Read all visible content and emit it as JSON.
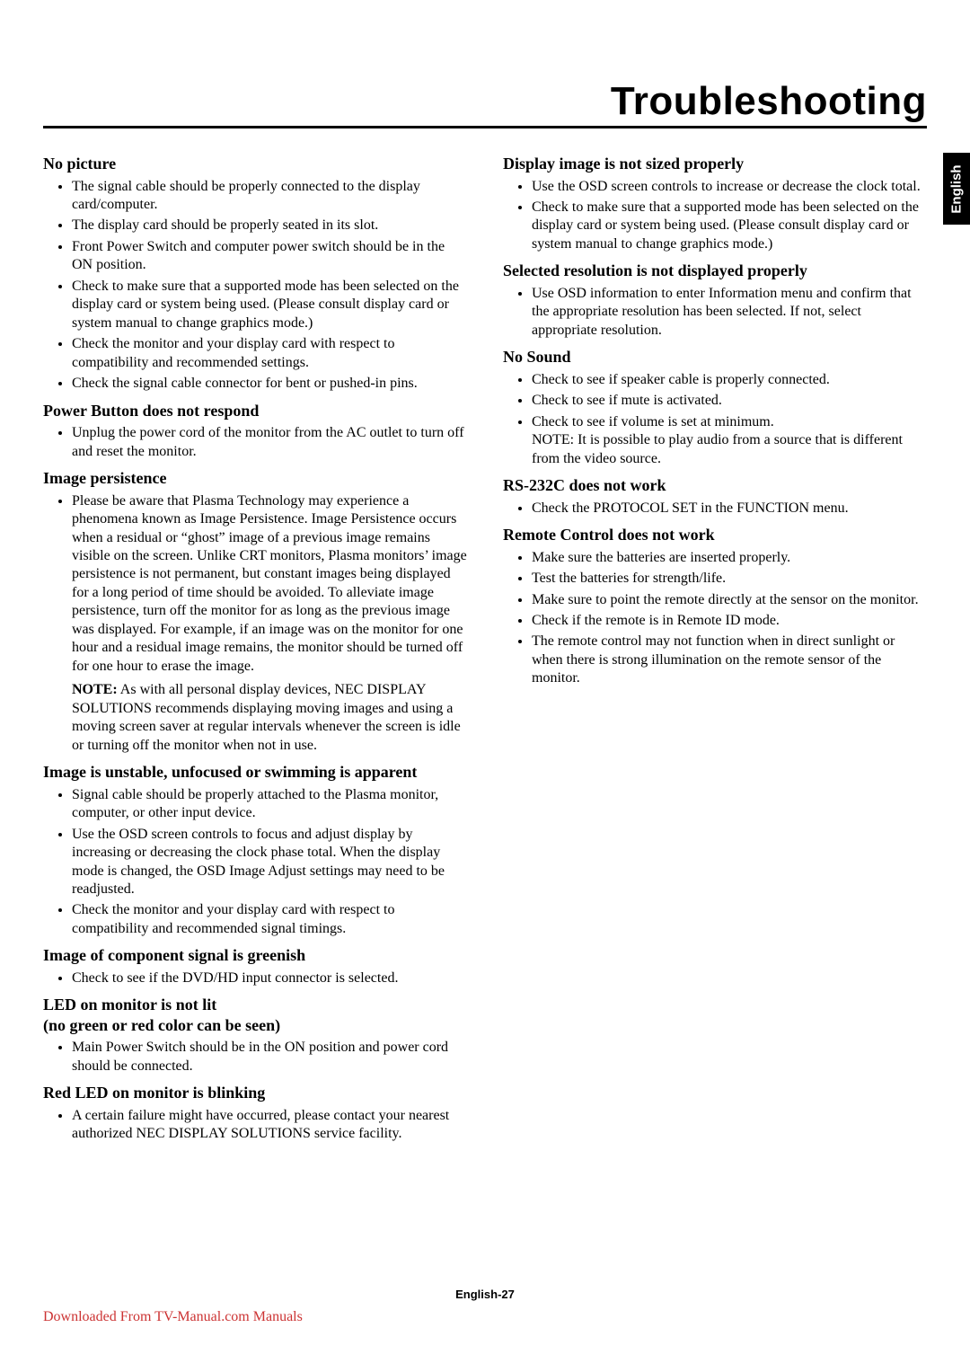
{
  "title": "Troubleshooting",
  "side_tab": "English",
  "footer_page": "English-27",
  "footer_download": "Downloaded From TV-Manual.com Manuals",
  "left": {
    "s1": {
      "h": "No picture",
      "items": [
        "The signal cable should be properly connected to the display card/computer.",
        "The display card should be properly seated in its slot.",
        "Front Power Switch and computer power switch should be in the ON position.",
        "Check to make sure that a supported mode has been selected on the display card or system being used. (Please consult display card or system manual to change graphics mode.)",
        "Check the monitor and your display card with respect to compatibility and recommended settings.",
        "Check the signal cable connector for bent or pushed-in pins."
      ]
    },
    "s2": {
      "h": "Power Button does not respond",
      "items": [
        "Unplug the power cord of the monitor from the AC outlet to turn off and reset the monitor."
      ]
    },
    "s3": {
      "h": "Image persistence",
      "items": [
        "Please be aware that Plasma Technology may experience a phenomena known as Image Persistence. Image Persistence occurs when a residual or “ghost” image of a previous image remains visible on the screen. Unlike CRT monitors, Plasma monitors’ image persistence is not permanent, but constant images being displayed for a long period of time should be avoided. To alleviate image persistence, turn off the monitor for as long as the previous image was displayed. For example, if an image was on the monitor for one hour and a residual image remains, the monitor should be turned off for one hour to erase the image."
      ],
      "note_label": "NOTE:",
      "note": " As with all personal display devices, NEC DISPLAY SOLUTIONS recommends displaying moving images and using a moving screen saver at regular  intervals whenever the screen is idle or turning off the monitor when not in use."
    },
    "s4": {
      "h": "Image is unstable, unfocused or swimming is apparent",
      "items": [
        "Signal cable should be properly attached to the Plasma monitor, computer, or other input device.",
        "Use the OSD screen controls to focus and adjust display by increasing or decreasing the clock phase total. When the display mode is changed, the OSD Image Adjust settings may need to be readjusted.",
        "Check the monitor and your display card with respect to compatibility and recommended signal timings."
      ]
    },
    "s5": {
      "h": "Image of component signal is greenish",
      "items": [
        "Check to see if the DVD/HD input connector is selected."
      ]
    },
    "s6": {
      "h": "LED on monitor is not lit",
      "h2": "(no green or red color can be seen)",
      "items": [
        "Main Power Switch should be in the ON position and power cord should be connected."
      ]
    },
    "s7": {
      "h": "Red LED on monitor is blinking",
      "items": [
        "A certain failure might have occurred, please contact your nearest authorized NEC DISPLAY SOLUTIONS service facility."
      ]
    }
  },
  "right": {
    "s1": {
      "h": "Display image is not sized properly",
      "items": [
        "Use the OSD screen controls to increase or decrease the clock total.",
        "Check to make sure that a supported mode has been selected on the display card or system being used. (Please consult display card or system manual to change graphics mode.)"
      ]
    },
    "s2": {
      "h": "Selected resolution is not displayed properly",
      "items": [
        "Use OSD information to enter Information menu and confirm that the appropriate resolution has been selected. If not, select appropriate resolution."
      ]
    },
    "s3": {
      "h": "No Sound",
      "items": [
        "Check to see if speaker cable is properly connected.",
        "Check to see if mute is activated.",
        "Check to see if volume is set at minimum.\nNOTE: It is possible to play audio from a source that is different from the video source."
      ]
    },
    "s4": {
      "h": "RS-232C does not work",
      "items": [
        "Check the PROTOCOL SET in the FUNCTION menu."
      ]
    },
    "s5": {
      "h": "Remote Control does not work",
      "items": [
        "Make sure the batteries are inserted properly.",
        "Test the batteries for strength/life.",
        "Make sure to point the remote directly at the sensor on the monitor.",
        "Check if the remote is in Remote ID mode.",
        "The remote control may not function when in direct sunlight or when there is strong illumination on the remote sensor of the monitor."
      ]
    }
  }
}
